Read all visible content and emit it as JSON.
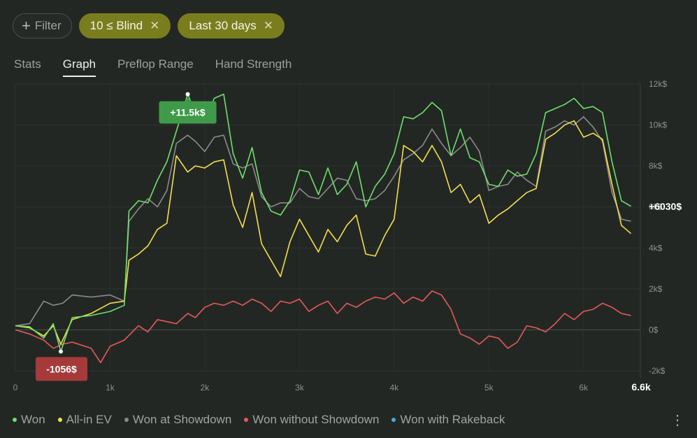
{
  "filters": {
    "filter_label": "Filter",
    "chips": [
      "10 ≤ Blind",
      "Last 30 days"
    ]
  },
  "tabs": [
    "Stats",
    "Graph",
    "Preflop Range",
    "Hand Strength"
  ],
  "selected_tab": "Graph",
  "chart_data": {
    "type": "line",
    "x_ticks": [
      "0",
      "1k",
      "2k",
      "3k",
      "4k",
      "5k",
      "6k"
    ],
    "x_end_label": "6.6k",
    "y_ticks": [
      "12k$",
      "10k$",
      "8k$",
      "6k$",
      "4k$",
      "2k$",
      "0$",
      "-2k$"
    ],
    "xlim": [
      0,
      6600
    ],
    "ylim": [
      -2000,
      12000
    ],
    "max_label": "+11.5k$",
    "min_label": "-1056$",
    "end_label": "+6030$",
    "max_point": {
      "x": 1820,
      "y": 11500
    },
    "min_point": {
      "x": 480,
      "y": -1056
    },
    "series": [
      {
        "name": "Won",
        "color": "#6fe06a",
        "points": [
          [
            0,
            200
          ],
          [
            150,
            150
          ],
          [
            300,
            -400
          ],
          [
            400,
            300
          ],
          [
            480,
            -1056
          ],
          [
            600,
            600
          ],
          [
            800,
            700
          ],
          [
            1000,
            900
          ],
          [
            1150,
            1200
          ],
          [
            1200,
            5800
          ],
          [
            1300,
            6300
          ],
          [
            1400,
            6200
          ],
          [
            1500,
            7300
          ],
          [
            1600,
            8200
          ],
          [
            1700,
            9700
          ],
          [
            1820,
            11500
          ],
          [
            1900,
            10600
          ],
          [
            2000,
            10100
          ],
          [
            2100,
            11300
          ],
          [
            2200,
            11500
          ],
          [
            2300,
            8600
          ],
          [
            2400,
            7400
          ],
          [
            2500,
            8900
          ],
          [
            2600,
            6700
          ],
          [
            2700,
            5800
          ],
          [
            2800,
            5600
          ],
          [
            2900,
            6300
          ],
          [
            3000,
            7800
          ],
          [
            3100,
            7700
          ],
          [
            3200,
            6600
          ],
          [
            3300,
            7900
          ],
          [
            3400,
            6600
          ],
          [
            3500,
            7100
          ],
          [
            3600,
            8200
          ],
          [
            3700,
            6000
          ],
          [
            3800,
            7000
          ],
          [
            3900,
            7600
          ],
          [
            4000,
            8600
          ],
          [
            4100,
            10400
          ],
          [
            4200,
            10300
          ],
          [
            4300,
            10600
          ],
          [
            4400,
            11100
          ],
          [
            4500,
            10700
          ],
          [
            4600,
            8500
          ],
          [
            4700,
            9800
          ],
          [
            4800,
            8400
          ],
          [
            4900,
            8200
          ],
          [
            5000,
            7100
          ],
          [
            5100,
            7000
          ],
          [
            5200,
            7800
          ],
          [
            5300,
            7500
          ],
          [
            5400,
            7600
          ],
          [
            5500,
            8600
          ],
          [
            5600,
            10600
          ],
          [
            5700,
            10800
          ],
          [
            5800,
            11000
          ],
          [
            5900,
            11300
          ],
          [
            6000,
            10800
          ],
          [
            6100,
            10900
          ],
          [
            6200,
            10600
          ],
          [
            6300,
            8200
          ],
          [
            6400,
            6300
          ],
          [
            6500,
            6030
          ]
        ]
      },
      {
        "name": "All-in EV",
        "color": "#f2df4e",
        "points": [
          [
            0,
            200
          ],
          [
            150,
            100
          ],
          [
            300,
            -300
          ],
          [
            400,
            200
          ],
          [
            480,
            -700
          ],
          [
            600,
            500
          ],
          [
            800,
            800
          ],
          [
            1000,
            1300
          ],
          [
            1150,
            1400
          ],
          [
            1200,
            3400
          ],
          [
            1300,
            3700
          ],
          [
            1400,
            4100
          ],
          [
            1500,
            4900
          ],
          [
            1600,
            5200
          ],
          [
            1700,
            8500
          ],
          [
            1820,
            7700
          ],
          [
            1900,
            8000
          ],
          [
            2000,
            7900
          ],
          [
            2100,
            8200
          ],
          [
            2200,
            8300
          ],
          [
            2300,
            6100
          ],
          [
            2400,
            5000
          ],
          [
            2500,
            6700
          ],
          [
            2600,
            4200
          ],
          [
            2700,
            3400
          ],
          [
            2800,
            2600
          ],
          [
            2900,
            4300
          ],
          [
            3000,
            5400
          ],
          [
            3100,
            4600
          ],
          [
            3200,
            3800
          ],
          [
            3300,
            4900
          ],
          [
            3400,
            4300
          ],
          [
            3500,
            5100
          ],
          [
            3600,
            5600
          ],
          [
            3700,
            3700
          ],
          [
            3800,
            3600
          ],
          [
            3900,
            4600
          ],
          [
            4000,
            5400
          ],
          [
            4100,
            9000
          ],
          [
            4200,
            8700
          ],
          [
            4300,
            8200
          ],
          [
            4400,
            9000
          ],
          [
            4500,
            8200
          ],
          [
            4600,
            6700
          ],
          [
            4700,
            7100
          ],
          [
            4800,
            6200
          ],
          [
            4900,
            6600
          ],
          [
            5000,
            5200
          ],
          [
            5100,
            5600
          ],
          [
            5200,
            5900
          ],
          [
            5300,
            6300
          ],
          [
            5400,
            6700
          ],
          [
            5500,
            6900
          ],
          [
            5600,
            9300
          ],
          [
            5700,
            9600
          ],
          [
            5800,
            10000
          ],
          [
            5900,
            10200
          ],
          [
            6000,
            9400
          ],
          [
            6100,
            9600
          ],
          [
            6200,
            9300
          ],
          [
            6300,
            7100
          ],
          [
            6400,
            5100
          ],
          [
            6500,
            4700
          ]
        ]
      },
      {
        "name": "Won at Showdown",
        "color": "#8a8a8a",
        "points": [
          [
            0,
            200
          ],
          [
            150,
            300
          ],
          [
            300,
            1400
          ],
          [
            400,
            1200
          ],
          [
            500,
            1300
          ],
          [
            600,
            1700
          ],
          [
            800,
            1600
          ],
          [
            1000,
            1700
          ],
          [
            1150,
            1400
          ],
          [
            1200,
            5300
          ],
          [
            1300,
            5900
          ],
          [
            1400,
            6400
          ],
          [
            1500,
            6000
          ],
          [
            1600,
            6800
          ],
          [
            1700,
            9100
          ],
          [
            1820,
            9500
          ],
          [
            1900,
            9200
          ],
          [
            2000,
            8700
          ],
          [
            2100,
            9400
          ],
          [
            2200,
            9500
          ],
          [
            2300,
            8100
          ],
          [
            2400,
            7900
          ],
          [
            2500,
            8100
          ],
          [
            2600,
            6500
          ],
          [
            2700,
            6000
          ],
          [
            2800,
            6200
          ],
          [
            2900,
            6200
          ],
          [
            3000,
            6900
          ],
          [
            3100,
            6500
          ],
          [
            3200,
            6400
          ],
          [
            3300,
            6900
          ],
          [
            3400,
            7400
          ],
          [
            3500,
            7300
          ],
          [
            3600,
            6400
          ],
          [
            3700,
            6300
          ],
          [
            3800,
            6400
          ],
          [
            3900,
            6800
          ],
          [
            4000,
            7500
          ],
          [
            4100,
            8300
          ],
          [
            4200,
            8600
          ],
          [
            4300,
            9000
          ],
          [
            4400,
            9800
          ],
          [
            4500,
            9100
          ],
          [
            4600,
            8500
          ],
          [
            4700,
            8900
          ],
          [
            4800,
            9400
          ],
          [
            4900,
            8700
          ],
          [
            5000,
            6800
          ],
          [
            5100,
            7000
          ],
          [
            5200,
            7100
          ],
          [
            5300,
            7700
          ],
          [
            5400,
            7300
          ],
          [
            5500,
            7000
          ],
          [
            5600,
            9700
          ],
          [
            5700,
            9900
          ],
          [
            5800,
            10200
          ],
          [
            5900,
            10000
          ],
          [
            6000,
            10400
          ],
          [
            6100,
            9900
          ],
          [
            6200,
            9200
          ],
          [
            6300,
            6700
          ],
          [
            6400,
            5400
          ],
          [
            6500,
            5300
          ]
        ]
      },
      {
        "name": "Won without Showdown",
        "color": "#e45a5a",
        "points": [
          [
            0,
            0
          ],
          [
            150,
            -200
          ],
          [
            300,
            -500
          ],
          [
            400,
            -900
          ],
          [
            500,
            -700
          ],
          [
            600,
            -600
          ],
          [
            800,
            -900
          ],
          [
            900,
            -1600
          ],
          [
            1000,
            -800
          ],
          [
            1150,
            -500
          ],
          [
            1300,
            200
          ],
          [
            1400,
            -100
          ],
          [
            1500,
            500
          ],
          [
            1600,
            400
          ],
          [
            1700,
            300
          ],
          [
            1820,
            800
          ],
          [
            1900,
            600
          ],
          [
            2000,
            1100
          ],
          [
            2100,
            1300
          ],
          [
            2200,
            1200
          ],
          [
            2300,
            1400
          ],
          [
            2400,
            1200
          ],
          [
            2500,
            1500
          ],
          [
            2600,
            1300
          ],
          [
            2700,
            900
          ],
          [
            2800,
            1400
          ],
          [
            2900,
            1300
          ],
          [
            3000,
            1500
          ],
          [
            3100,
            900
          ],
          [
            3200,
            1200
          ],
          [
            3300,
            1400
          ],
          [
            3400,
            800
          ],
          [
            3500,
            1300
          ],
          [
            3600,
            1100
          ],
          [
            3700,
            1400
          ],
          [
            3800,
            1600
          ],
          [
            3900,
            1500
          ],
          [
            4000,
            1800
          ],
          [
            4100,
            1300
          ],
          [
            4200,
            1600
          ],
          [
            4300,
            1400
          ],
          [
            4400,
            1900
          ],
          [
            4500,
            1700
          ],
          [
            4600,
            1000
          ],
          [
            4700,
            -200
          ],
          [
            4800,
            -400
          ],
          [
            4900,
            -700
          ],
          [
            5000,
            -300
          ],
          [
            5100,
            -400
          ],
          [
            5200,
            -900
          ],
          [
            5300,
            -600
          ],
          [
            5400,
            200
          ],
          [
            5500,
            100
          ],
          [
            5600,
            -100
          ],
          [
            5700,
            300
          ],
          [
            5800,
            800
          ],
          [
            5900,
            500
          ],
          [
            6000,
            900
          ],
          [
            6100,
            1000
          ],
          [
            6200,
            1300
          ],
          [
            6300,
            1100
          ],
          [
            6400,
            800
          ],
          [
            6500,
            700
          ]
        ]
      }
    ]
  },
  "legend": [
    {
      "label": "Won",
      "color": "#6fe06a"
    },
    {
      "label": "All-in EV",
      "color": "#f2df4e"
    },
    {
      "label": "Won at Showdown",
      "color": "#8a8a8a"
    },
    {
      "label": "Won without Showdown",
      "color": "#e45a5a"
    },
    {
      "label": "Won with Rakeback",
      "color": "#4aa9e0"
    }
  ],
  "menu_icon": "kebab-menu-icon"
}
